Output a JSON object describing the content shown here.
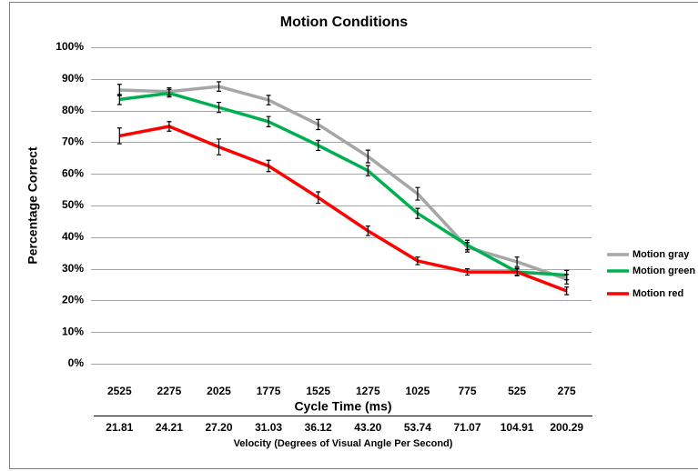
{
  "chart_data": {
    "type": "line",
    "title": "Motion Conditions",
    "y_label": "Percentage Correct",
    "x_label": "Cycle Time (ms)",
    "x2_label": "Velocity (Degrees of Visual Angle Per Second)",
    "categories": [
      "2525",
      "2275",
      "2025",
      "1775",
      "1525",
      "1275",
      "1025",
      "775",
      "525",
      "275"
    ],
    "categories2": [
      "21.81",
      "24.21",
      "27.20",
      "31.03",
      "36.12",
      "43.20",
      "53.74",
      "71.07",
      "104.91",
      "200.29"
    ],
    "ylim": [
      0,
      100
    ],
    "yticks": [
      {
        "value": 0,
        "label": "0%"
      },
      {
        "value": 10,
        "label": "10%"
      },
      {
        "value": 20,
        "label": "20%"
      },
      {
        "value": 30,
        "label": "30%"
      },
      {
        "value": 40,
        "label": "40%"
      },
      {
        "value": 50,
        "label": "50%"
      },
      {
        "value": 60,
        "label": "60%"
      },
      {
        "value": 70,
        "label": "70%"
      },
      {
        "value": 80,
        "label": "80%"
      },
      {
        "value": 90,
        "label": "90%"
      },
      {
        "value": 100,
        "label": "100%"
      }
    ],
    "grid": true,
    "legend": "right",
    "series": [
      {
        "name": "Motion gray",
        "color": "#a6a6a6",
        "values": [
          86.5,
          86,
          87.6,
          83.3,
          75.6,
          65.5,
          53.7,
          36.8,
          32.2,
          26.7
        ],
        "errors": [
          1.8,
          1.2,
          1.5,
          1.5,
          1.6,
          2,
          2,
          1.5,
          1.5,
          1.5
        ]
      },
      {
        "name": "Motion green",
        "color": "#00b050",
        "values": [
          83.5,
          85.5,
          81,
          76.5,
          69,
          61,
          47.5,
          37.5,
          29,
          28
        ],
        "errors": [
          1.6,
          1.2,
          1.6,
          1.6,
          1.6,
          1.6,
          1.6,
          1.5,
          1.2,
          1.5
        ]
      },
      {
        "name": "Motion red",
        "color": "#ff0000",
        "values": [
          72,
          75,
          68.5,
          62.5,
          52.5,
          42,
          32.5,
          29,
          29,
          23
        ],
        "errors": [
          2.5,
          1.5,
          2.5,
          1.8,
          1.8,
          1.5,
          1.2,
          1,
          1,
          1.2
        ]
      }
    ]
  }
}
